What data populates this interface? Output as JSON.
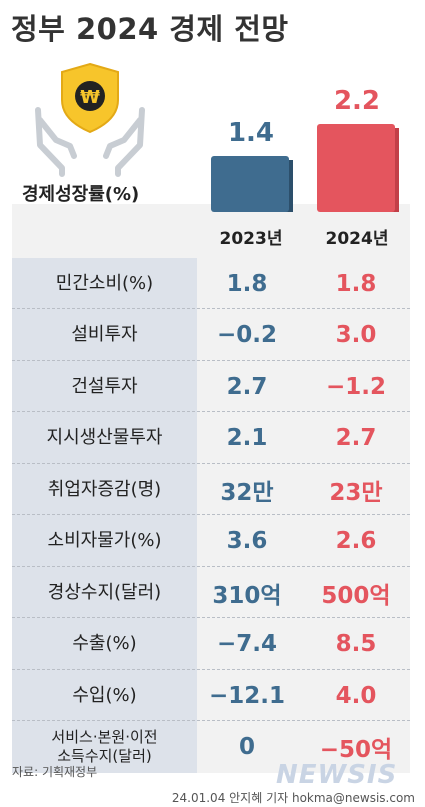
{
  "title": "정부 2024 경제 전망",
  "chart_data": {
    "type": "bar",
    "series_label": "경제성장률(%)",
    "categories": [
      "2023년",
      "2024년"
    ],
    "values": [
      1.4,
      2.2
    ],
    "colors": [
      "#3f6c8f",
      "#e4555e"
    ]
  },
  "table": {
    "columns": [
      "2023년",
      "2024년"
    ],
    "rows": [
      {
        "label": "민간소비(%)",
        "v2023": "1.8",
        "v2024": "1.8"
      },
      {
        "label": "설비투자",
        "v2023": "−0.2",
        "v2024": "3.0"
      },
      {
        "label": "건설투자",
        "v2023": "2.7",
        "v2024": "−1.2"
      },
      {
        "label": "지시생산물투자",
        "v2023": "2.1",
        "v2024": "2.7"
      },
      {
        "label": "취업자증감(명)",
        "v2023": "32만",
        "v2024": "23만"
      },
      {
        "label": "소비자물가(%)",
        "v2023": "3.6",
        "v2024": "2.6"
      },
      {
        "label": "경상수지(달러)",
        "v2023": "310억",
        "v2024": "500억"
      },
      {
        "label": "수출(%)",
        "v2023": "−7.4",
        "v2024": "8.5"
      },
      {
        "label": "수입(%)",
        "v2023": "−12.1",
        "v2024": "4.0"
      },
      {
        "label": "서비스·본원·이전 소득수지(달러)",
        "v2023": "0",
        "v2024": "−50억"
      }
    ]
  },
  "source": "자료: 기획재정부",
  "credit": "24.01.04 안지혜 기자 hokma@newsis.com",
  "watermark": "NEWSIS",
  "icon": "won-shield-hands-icon"
}
